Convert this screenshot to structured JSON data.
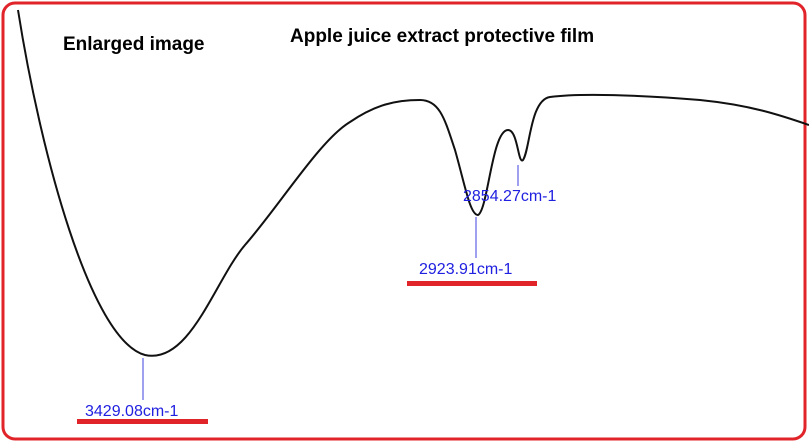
{
  "header": {
    "label": "Enlarged image",
    "title": "Apple juice extract  protective film"
  },
  "peaks": [
    {
      "label": "3429.08cm-1"
    },
    {
      "label": "2923.91cm-1"
    },
    {
      "label": "2854.27cm-1"
    }
  ]
}
